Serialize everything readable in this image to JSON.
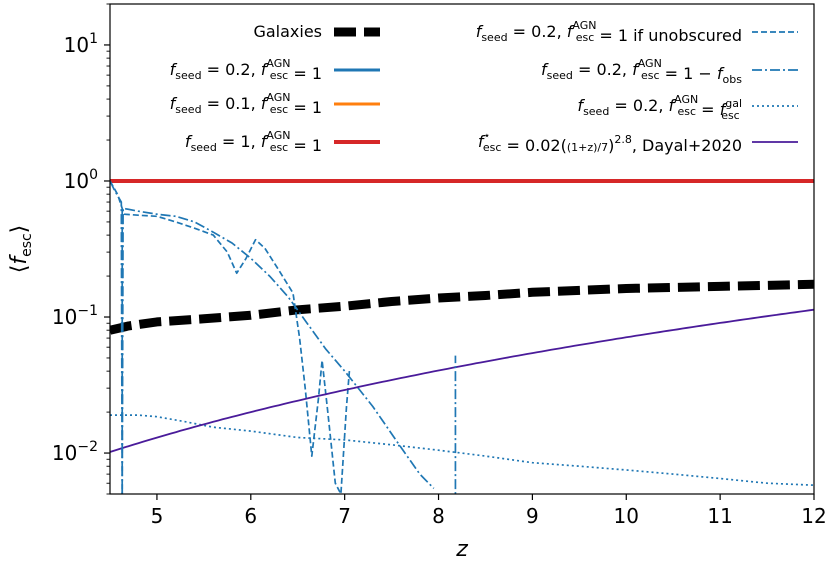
{
  "chart_data": {
    "type": "line",
    "title": "",
    "xlabel": "z",
    "ylabel": "⟨f_esc⟩",
    "xlim": [
      4.5,
      12
    ],
    "ylim": [
      0.005,
      20
    ],
    "yscale": "log",
    "xticks": [
      {
        "value": 5,
        "label": "5"
      },
      {
        "value": 6,
        "label": "6"
      },
      {
        "value": 7,
        "label": "7"
      },
      {
        "value": 8,
        "label": "8"
      },
      {
        "value": 9,
        "label": "9"
      },
      {
        "value": 10,
        "label": "10"
      },
      {
        "value": 11,
        "label": "11"
      },
      {
        "value": 12,
        "label": "12"
      }
    ],
    "yticks": [
      {
        "value": 0.01,
        "label": "10",
        "exp": "−2"
      },
      {
        "value": 0.1,
        "label": "10",
        "exp": "−1"
      },
      {
        "value": 1,
        "label": "10",
        "exp": "0"
      },
      {
        "value": 10,
        "label": "10",
        "exp": "1"
      }
    ],
    "series": [
      {
        "name": "Galaxies",
        "color": "#000000",
        "width": 9,
        "dash": "22,8",
        "x": [
          4.5,
          4.7,
          5.0,
          5.5,
          6.0,
          6.5,
          7.0,
          7.5,
          8.0,
          8.5,
          9.0,
          10.0,
          11.0,
          12.0
        ],
        "y": [
          0.08,
          0.086,
          0.092,
          0.097,
          0.103,
          0.113,
          0.12,
          0.13,
          0.138,
          0.144,
          0.152,
          0.162,
          0.168,
          0.174
        ]
      },
      {
        "name": "f_seed = 0.2, f_esc^AGN = 1",
        "color": "#1f77b4",
        "width": 3,
        "dash": ""
      },
      {
        "name": "f_seed = 0.1, f_esc^AGN = 1",
        "color": "#ff7f0e",
        "width": 3,
        "dash": ""
      },
      {
        "name": "f_seed = 1, f_esc^AGN = 1",
        "color": "#d62728",
        "width": 4,
        "dash": "",
        "x": [
          4.5,
          12.0
        ],
        "y": [
          1.0,
          1.0
        ]
      },
      {
        "name": "f_seed = 0.2, f_esc^AGN = 1 if unobscured",
        "color": "#1f77b4",
        "width": 1.7,
        "dash": "6,3",
        "x": [
          4.5,
          4.58,
          4.65,
          4.8,
          5.0,
          5.2,
          5.4,
          5.6,
          5.75,
          5.85,
          5.95,
          6.05,
          6.15,
          6.3,
          6.45,
          6.52,
          6.58,
          6.65,
          6.72,
          6.76,
          6.82,
          6.9,
          6.96,
          7.02,
          7.05
        ],
        "y": [
          1.0,
          0.8,
          0.57,
          0.56,
          0.55,
          0.5,
          0.45,
          0.4,
          0.3,
          0.21,
          0.27,
          0.37,
          0.32,
          0.22,
          0.15,
          0.07,
          0.03,
          0.0095,
          0.025,
          0.048,
          0.02,
          0.006,
          0.005,
          0.022,
          0.04
        ]
      },
      {
        "name": "f_seed = 0.2, f_esc^AGN = 1 − f_obs",
        "color": "#1f77b4",
        "width": 1.7,
        "dash": "10,3,2,3",
        "x": [
          4.5,
          4.55,
          4.62,
          4.63,
          4.64,
          4.8,
          5.0,
          5.2,
          5.4,
          5.6,
          5.8,
          6.0,
          6.2,
          6.4,
          6.6,
          6.8,
          7.0,
          7.3,
          7.6,
          7.8,
          7.95
        ],
        "y": [
          1.0,
          0.85,
          0.7,
          0.004,
          0.63,
          0.6,
          0.57,
          0.55,
          0.5,
          0.42,
          0.35,
          0.27,
          0.2,
          0.14,
          0.09,
          0.058,
          0.04,
          0.022,
          0.011,
          0.007,
          0.0055
        ]
      },
      {
        "name": "f_seed = 0.2, f_esc^AGN = f_esc^gal",
        "color": "#1f77b4",
        "width": 1.7,
        "dash": "2,3",
        "x": [
          4.5,
          4.8,
          5.0,
          5.3,
          5.6,
          6.0,
          6.5,
          7.0,
          7.5,
          8.0,
          8.5,
          9.0,
          9.5,
          10.0,
          10.5,
          11.0,
          11.5,
          12.0
        ],
        "y": [
          0.019,
          0.019,
          0.0185,
          0.017,
          0.0155,
          0.0145,
          0.013,
          0.0125,
          0.0115,
          0.0105,
          0.0095,
          0.0085,
          0.008,
          0.0075,
          0.007,
          0.0065,
          0.006,
          0.0058
        ]
      },
      {
        "name": "f_esc* = 0.02((1+z)/7)^2.8, Dayal+2020",
        "color": "#4a1b9a",
        "width": 1.8,
        "dash": "",
        "formula": {
          "a": 0.02,
          "b": 7,
          "p": 2.8
        }
      }
    ],
    "spikes": [
      {
        "x": 4.63,
        "y_from": 0.004,
        "y_to": 0.63,
        "color": "#1f77b4",
        "dash": "10,3,2,3"
      },
      {
        "x": 8.18,
        "y_from": 0.004,
        "y_to": 0.052,
        "color": "#1f77b4",
        "dash": "10,3,2,3"
      }
    ],
    "legend": {
      "position": "top",
      "left": [
        {
          "series": 0,
          "label": "Galaxies"
        },
        {
          "series": 1,
          "label": "f_seed = 0.2, f_esc^AGN = 1"
        },
        {
          "series": 2,
          "label": "f_seed = 0.1, f_esc^AGN = 1"
        },
        {
          "series": 3,
          "label": "f_seed = 1, f_esc^AGN = 1"
        }
      ],
      "right": [
        {
          "series": 4,
          "label": "f_seed = 0.2, f_esc^AGN = 1 if unobscured"
        },
        {
          "series": 5,
          "label": "f_seed = 0.2, f_esc^AGN = 1 − f_obs"
        },
        {
          "series": 6,
          "label": "f_seed = 0.2, f_esc^AGN = f_esc^gal"
        },
        {
          "series": 7,
          "label": "f_esc* = 0.02((1+z)/7)^2.8, Dayal+2020"
        }
      ]
    }
  }
}
